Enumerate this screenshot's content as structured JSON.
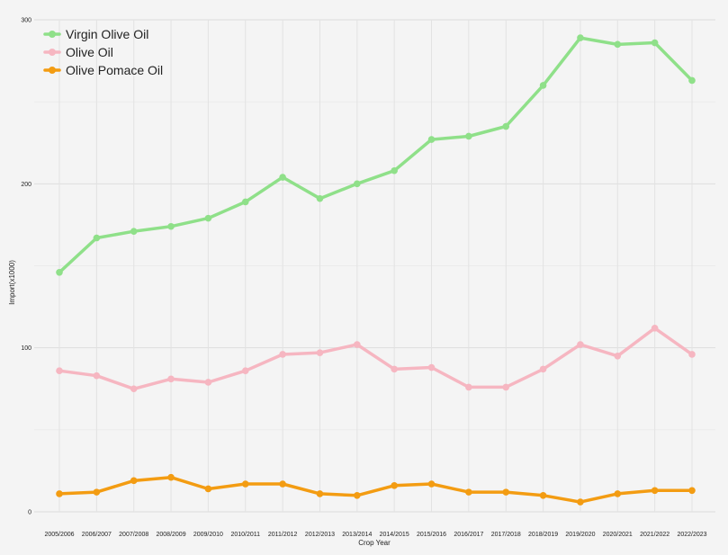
{
  "chart_data": {
    "type": "line",
    "title": "",
    "xlabel": "Crop Year",
    "ylabel": "Import(x1000)",
    "categories": [
      "2005/2006",
      "2006/2007",
      "2007/2008",
      "2008/2009",
      "2009/2010",
      "2010/2011",
      "2011/2012",
      "2012/2013",
      "2013/2014",
      "2014/2015",
      "2015/2016",
      "2016/2017",
      "2017/2018",
      "2018/2019",
      "2019/2020",
      "2020/2021",
      "2021/2022",
      "2022/2023"
    ],
    "ylim": [
      0,
      300
    ],
    "yticks": [
      0,
      100,
      200,
      300
    ],
    "grid": true,
    "legend_position": "top-left",
    "series": [
      {
        "name": "Virgin Olive Oil",
        "color": "#8fe089",
        "values": [
          146,
          167,
          171,
          174,
          179,
          189,
          204,
          191,
          200,
          208,
          227,
          229,
          235,
          260,
          289,
          285,
          286,
          263
        ]
      },
      {
        "name": "Olive Oil",
        "color": "#f6b6c1",
        "values": [
          86,
          83,
          75,
          81,
          79,
          86,
          96,
          97,
          102,
          87,
          88,
          76,
          76,
          87,
          102,
          95,
          112,
          96
        ]
      },
      {
        "name": "Olive Pomace Oil",
        "color": "#f39c12",
        "values": [
          11,
          12,
          19,
          21,
          14,
          17,
          17,
          11,
          10,
          16,
          17,
          12,
          12,
          10,
          6,
          11,
          13,
          13
        ]
      }
    ]
  }
}
